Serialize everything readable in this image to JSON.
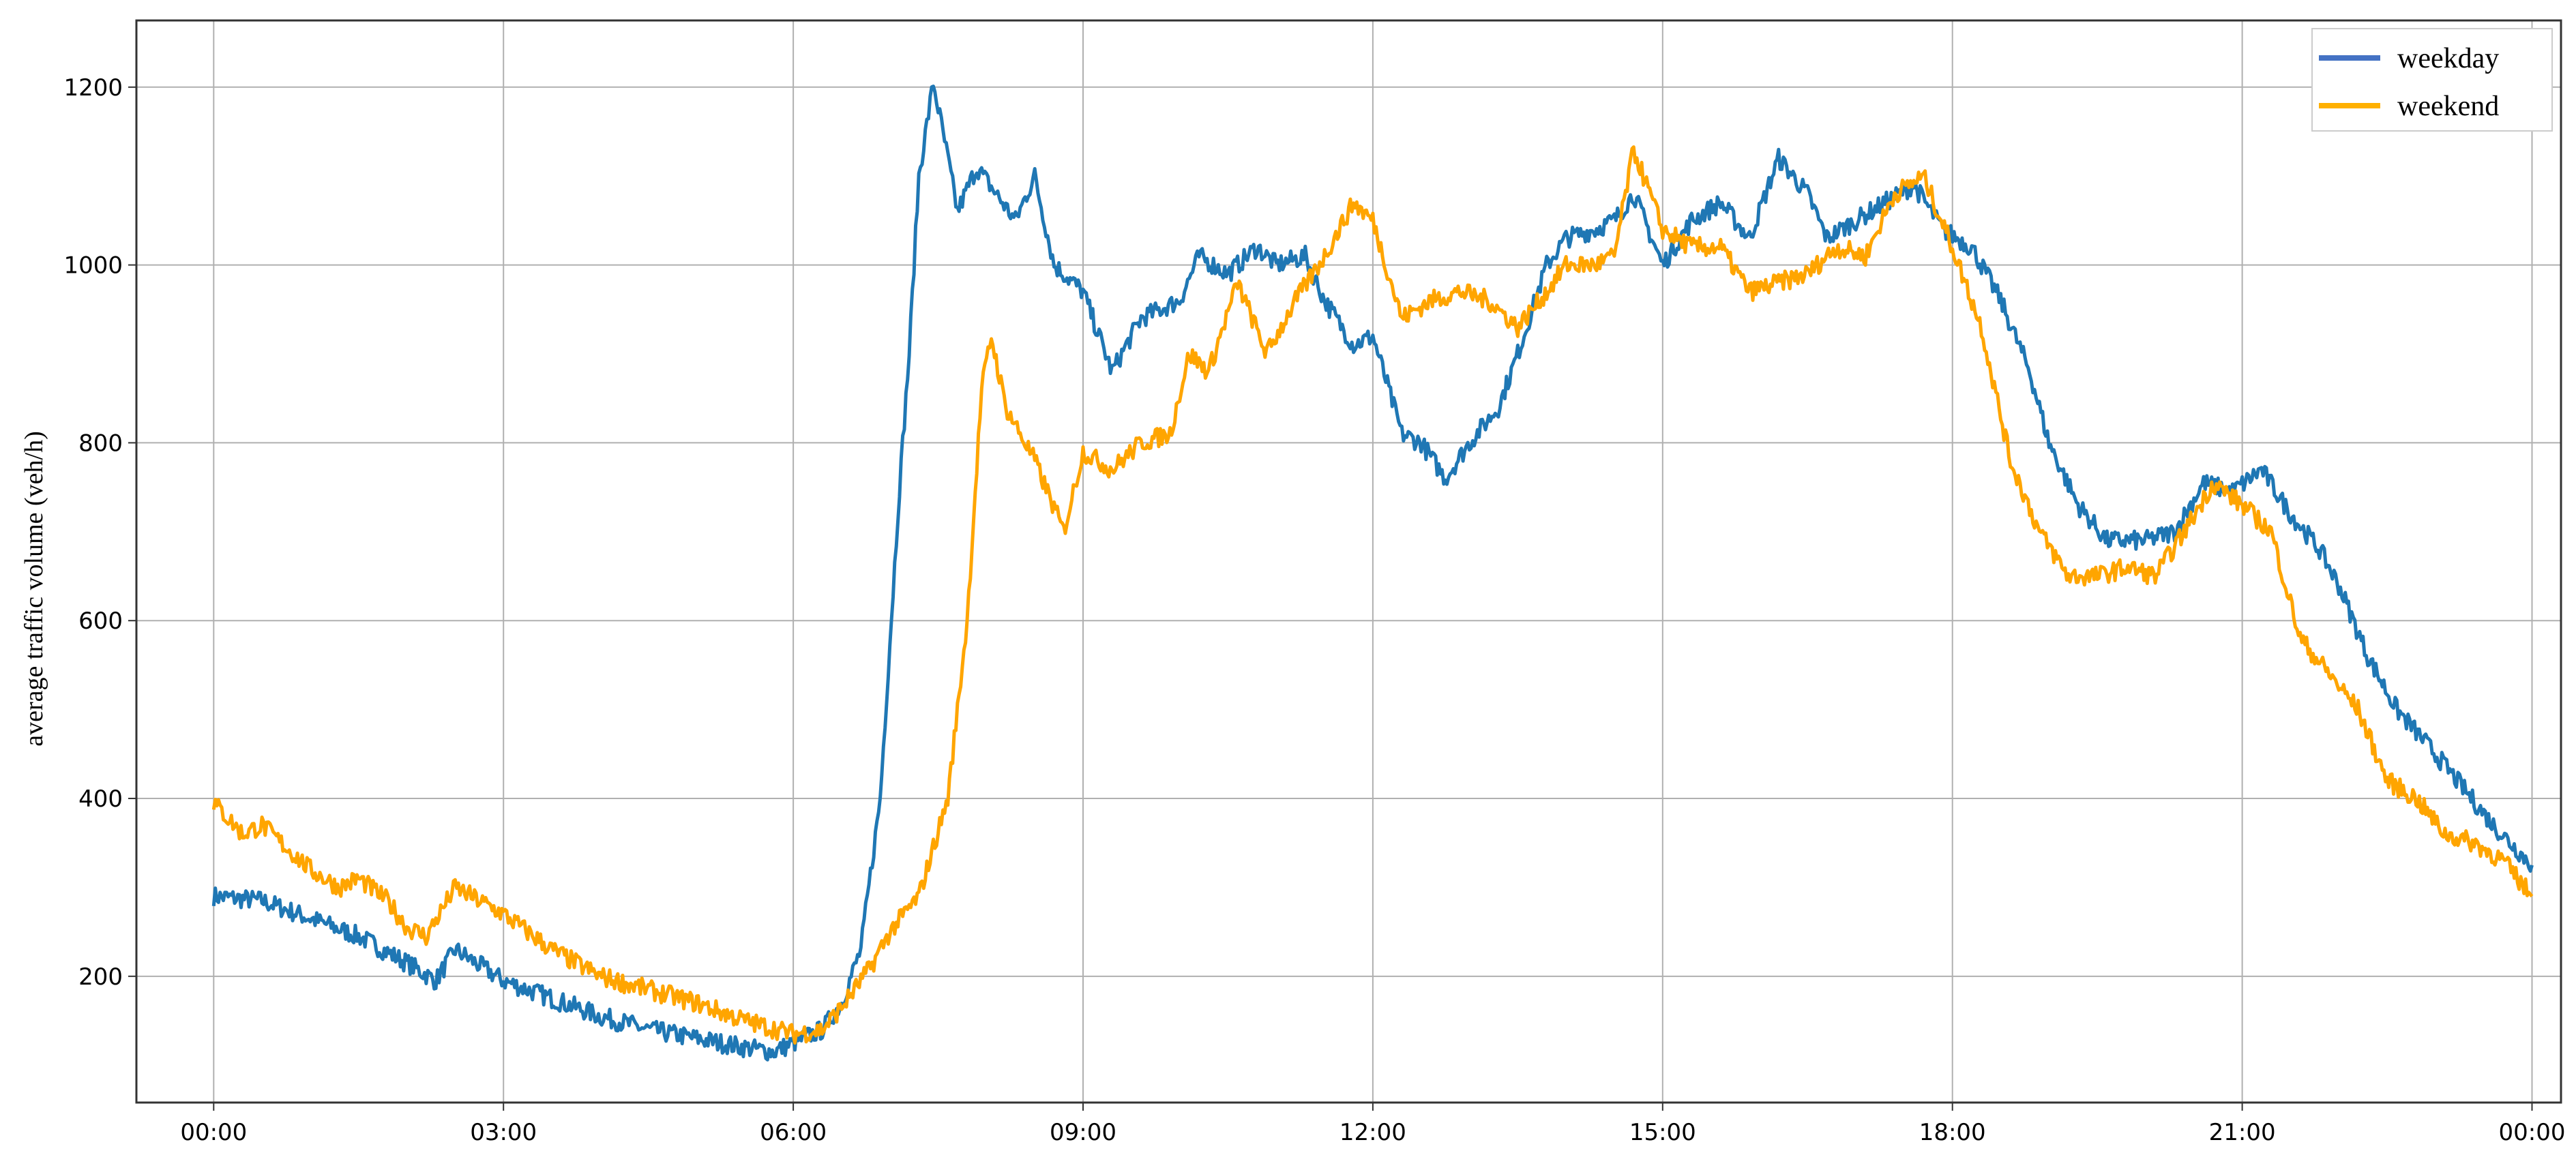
{
  "colors": {
    "background": "#ffffff",
    "grid": "#b0b0b0",
    "frame": "#333333"
  },
  "chart_data": {
    "type": "line",
    "xlabel": "",
    "ylabel": "average traffic volume  (veh/h)",
    "x_unit": "hour of day",
    "xlim": [
      -0.8,
      24.3
    ],
    "ylim": [
      58,
      1275
    ],
    "grid": true,
    "legend_position": "top-right",
    "x_ticks": [
      {
        "value": 0,
        "label": "00:00"
      },
      {
        "value": 3,
        "label": "03:00"
      },
      {
        "value": 6,
        "label": "06:00"
      },
      {
        "value": 9,
        "label": "09:00"
      },
      {
        "value": 12,
        "label": "12:00"
      },
      {
        "value": 15,
        "label": "15:00"
      },
      {
        "value": 18,
        "label": "18:00"
      },
      {
        "value": 21,
        "label": "21:00"
      },
      {
        "value": 24,
        "label": "00:00"
      }
    ],
    "y_ticks": [
      {
        "value": 200,
        "label": "200"
      },
      {
        "value": 400,
        "label": "400"
      },
      {
        "value": 600,
        "label": "600"
      },
      {
        "value": 800,
        "label": "800"
      },
      {
        "value": 1000,
        "label": "1000"
      },
      {
        "value": 1200,
        "label": "1200"
      }
    ],
    "series": [
      {
        "name": "weekday",
        "color": "#1f77b4",
        "legend_color": "#4472c4",
        "points": [
          [
            0.0,
            290
          ],
          [
            0.5,
            285
          ],
          [
            1.0,
            265
          ],
          [
            1.5,
            245
          ],
          [
            2.0,
            215
          ],
          [
            2.3,
            195
          ],
          [
            2.5,
            230
          ],
          [
            3.0,
            195
          ],
          [
            3.5,
            175
          ],
          [
            4.0,
            155
          ],
          [
            4.5,
            140
          ],
          [
            5.0,
            130
          ],
          [
            5.5,
            120
          ],
          [
            5.8,
            115
          ],
          [
            6.0,
            125
          ],
          [
            6.3,
            140
          ],
          [
            6.5,
            170
          ],
          [
            6.7,
            230
          ],
          [
            6.9,
            400
          ],
          [
            7.1,
            750
          ],
          [
            7.2,
            900
          ],
          [
            7.3,
            1100
          ],
          [
            7.45,
            1205
          ],
          [
            7.6,
            1120
          ],
          [
            7.7,
            1060
          ],
          [
            7.9,
            1110
          ],
          [
            8.1,
            1080
          ],
          [
            8.3,
            1050
          ],
          [
            8.5,
            1100
          ],
          [
            8.7,
            1000
          ],
          [
            9.0,
            970
          ],
          [
            9.3,
            880
          ],
          [
            9.6,
            940
          ],
          [
            10.0,
            960
          ],
          [
            10.2,
            1010
          ],
          [
            10.5,
            990
          ],
          [
            10.8,
            1020
          ],
          [
            11.0,
            1000
          ],
          [
            11.3,
            1010
          ],
          [
            11.5,
            960
          ],
          [
            11.8,
            910
          ],
          [
            12.0,
            920
          ],
          [
            12.3,
            810
          ],
          [
            12.5,
            800
          ],
          [
            12.75,
            760
          ],
          [
            13.0,
            800
          ],
          [
            13.3,
            840
          ],
          [
            13.5,
            900
          ],
          [
            13.8,
            1000
          ],
          [
            14.0,
            1030
          ],
          [
            14.3,
            1040
          ],
          [
            14.5,
            1050
          ],
          [
            14.7,
            1080
          ],
          [
            15.0,
            1000
          ],
          [
            15.3,
            1050
          ],
          [
            15.6,
            1070
          ],
          [
            15.9,
            1030
          ],
          [
            16.2,
            1120
          ],
          [
            16.5,
            1080
          ],
          [
            16.7,
            1030
          ],
          [
            17.0,
            1050
          ],
          [
            17.3,
            1070
          ],
          [
            17.6,
            1090
          ],
          [
            17.9,
            1040
          ],
          [
            18.2,
            1020
          ],
          [
            18.5,
            960
          ],
          [
            18.8,
            880
          ],
          [
            19.0,
            800
          ],
          [
            19.3,
            730
          ],
          [
            19.6,
            690
          ],
          [
            20.0,
            690
          ],
          [
            20.3,
            700
          ],
          [
            20.6,
            755
          ],
          [
            20.9,
            745
          ],
          [
            21.2,
            770
          ],
          [
            21.5,
            720
          ],
          [
            21.8,
            680
          ],
          [
            22.0,
            640
          ],
          [
            22.3,
            560
          ],
          [
            22.6,
            500
          ],
          [
            23.0,
            450
          ],
          [
            23.3,
            410
          ],
          [
            23.6,
            370
          ],
          [
            24.0,
            325
          ]
        ]
      },
      {
        "name": "weekend",
        "color": "#ffa500",
        "legend_color": "#ffb000",
        "points": [
          [
            0.0,
            395
          ],
          [
            0.3,
            360
          ],
          [
            0.5,
            370
          ],
          [
            0.8,
            340
          ],
          [
            1.0,
            320
          ],
          [
            1.3,
            300
          ],
          [
            1.5,
            310
          ],
          [
            1.8,
            285
          ],
          [
            2.0,
            255
          ],
          [
            2.2,
            245
          ],
          [
            2.5,
            300
          ],
          [
            3.0,
            270
          ],
          [
            3.5,
            230
          ],
          [
            4.0,
            200
          ],
          [
            4.5,
            185
          ],
          [
            5.0,
            170
          ],
          [
            5.5,
            150
          ],
          [
            6.0,
            135
          ],
          [
            6.3,
            140
          ],
          [
            6.5,
            165
          ],
          [
            6.8,
            210
          ],
          [
            7.0,
            250
          ],
          [
            7.3,
            290
          ],
          [
            7.6,
            400
          ],
          [
            7.8,
            600
          ],
          [
            7.95,
            860
          ],
          [
            8.05,
            920
          ],
          [
            8.2,
            840
          ],
          [
            8.5,
            780
          ],
          [
            8.8,
            700
          ],
          [
            9.0,
            790
          ],
          [
            9.3,
            770
          ],
          [
            9.6,
            800
          ],
          [
            9.9,
            810
          ],
          [
            10.1,
            900
          ],
          [
            10.3,
            880
          ],
          [
            10.6,
            980
          ],
          [
            10.9,
            900
          ],
          [
            11.2,
            960
          ],
          [
            11.5,
            1010
          ],
          [
            11.8,
            1070
          ],
          [
            12.0,
            1050
          ],
          [
            12.3,
            940
          ],
          [
            12.6,
            960
          ],
          [
            12.9,
            970
          ],
          [
            13.2,
            960
          ],
          [
            13.5,
            930
          ],
          [
            13.8,
            970
          ],
          [
            14.0,
            1000
          ],
          [
            14.3,
            1000
          ],
          [
            14.5,
            1010
          ],
          [
            14.7,
            1130
          ],
          [
            15.0,
            1040
          ],
          [
            15.3,
            1020
          ],
          [
            15.6,
            1020
          ],
          [
            15.9,
            970
          ],
          [
            16.2,
            980
          ],
          [
            16.5,
            990
          ],
          [
            16.8,
            1020
          ],
          [
            17.1,
            1010
          ],
          [
            17.4,
            1080
          ],
          [
            17.7,
            1100
          ],
          [
            18.0,
            1020
          ],
          [
            18.3,
            930
          ],
          [
            18.6,
            780
          ],
          [
            18.9,
            700
          ],
          [
            19.2,
            650
          ],
          [
            19.5,
            650
          ],
          [
            19.8,
            660
          ],
          [
            20.1,
            650
          ],
          [
            20.4,
            700
          ],
          [
            20.7,
            755
          ],
          [
            21.0,
            730
          ],
          [
            21.3,
            700
          ],
          [
            21.6,
            580
          ],
          [
            21.9,
            540
          ],
          [
            22.2,
            500
          ],
          [
            22.5,
            420
          ],
          [
            22.8,
            400
          ],
          [
            23.1,
            360
          ],
          [
            23.4,
            350
          ],
          [
            23.7,
            330
          ],
          [
            24.0,
            290
          ]
        ]
      }
    ]
  }
}
